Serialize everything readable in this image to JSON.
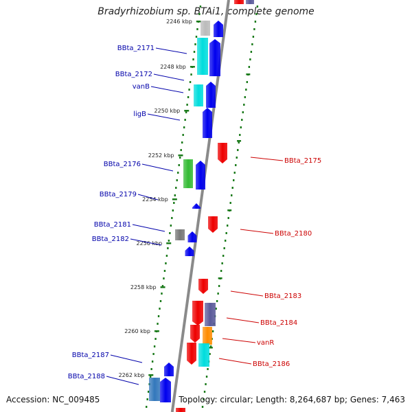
{
  "title": "Bradyrhizobium sp. BTAi1, complete genome",
  "footer": {
    "accession": "Accession: NC_009485",
    "summary": "Topology: circular; Length: 8,264,687 bp; Genes: 7,463"
  },
  "colors": {
    "backbone": "#8a8a8a",
    "dots": "#1a7a1a",
    "forward_label": "#0000aa",
    "reverse_label": "#cc0000"
  },
  "ticks": [
    "2246 kbp",
    "2248 kbp",
    "2250 kbp",
    "2252 kbp",
    "2254 kbp",
    "2256 kbp",
    "2258 kbp",
    "2260 kbp",
    "2262 kbp"
  ],
  "forward_labels": [
    "BBta_2171",
    "BBta_2172",
    "vanB",
    "ligB",
    "BBta_2176",
    "BBta_2179",
    "BBta_2181",
    "BBta_2182",
    "BBta_2187",
    "BBta_2188"
  ],
  "reverse_labels": [
    "BBta_2175",
    "BBta_2180",
    "BBta_2183",
    "BBta_2184",
    "vanR",
    "BBta_2186"
  ]
}
